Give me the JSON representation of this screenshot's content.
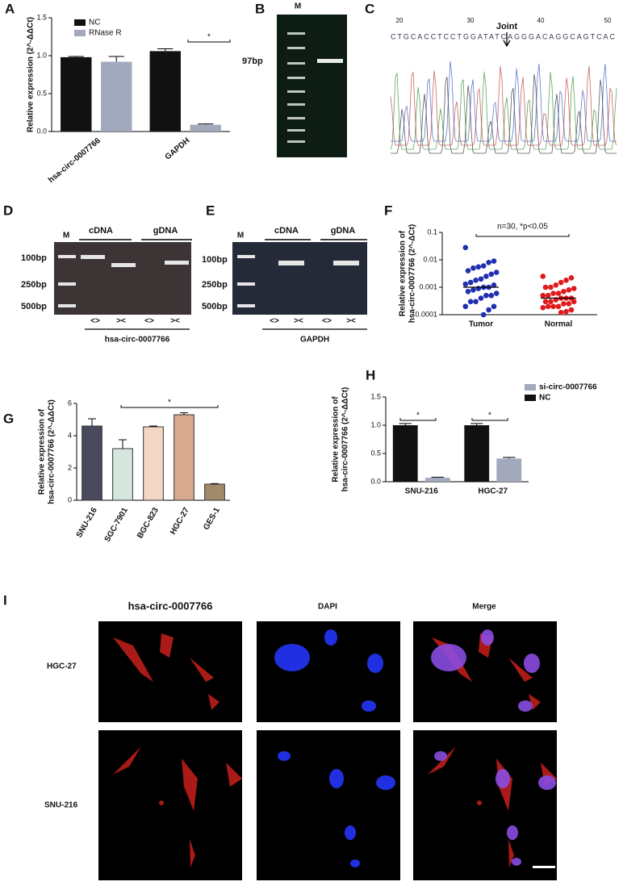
{
  "panel_letters": [
    "A",
    "B",
    "C",
    "D",
    "E",
    "F",
    "G",
    "H",
    "I"
  ],
  "chart_data": [
    {
      "type": "bar",
      "ylabel": "Relative expression (2^-ΔΔCt)",
      "categories": [
        "hsa-circ-0007766",
        "GAPDH"
      ],
      "series": [
        {
          "name": "NC",
          "color": "#111111",
          "values": [
            0.98,
            1.06
          ],
          "errors": [
            0.01,
            0.03
          ]
        },
        {
          "name": "RNase R",
          "color": "#a3a9bd",
          "values": [
            0.92,
            0.09
          ],
          "errors": [
            0.07,
            0.01
          ]
        }
      ],
      "ylim": [
        0,
        1.5
      ],
      "yticks": [
        {
          "value": 0,
          "label": "0.0"
        },
        {
          "value": 0.5,
          "label": "0.5"
        },
        {
          "value": 1,
          "label": "1.0"
        },
        {
          "value": 1.5,
          "label": "1.5"
        }
      ],
      "annotations": [
        "*"
      ]
    },
    {
      "type": "scatter",
      "ylabel": [
        "Relative expression of",
        "hsa-circ-0007766 (2^-ΔCt)"
      ],
      "categories": [
        "Tumor",
        "Normal"
      ],
      "series": [
        {
          "color": "#1f2fb0",
          "mean": 0.001,
          "values": [
            0.028,
            0.009,
            0.008,
            0.006,
            0.0055,
            0.005,
            0.004,
            0.0035,
            0.003,
            0.0025,
            0.002,
            0.0018,
            0.0015,
            0.0013,
            0.0012,
            0.001,
            0.001,
            0.0009,
            0.0008,
            0.0007,
            0.0006,
            0.0005,
            0.0005,
            0.0004,
            0.0003,
            0.0003,
            0.0002,
            0.0002,
            0.00015,
            0.0001
          ]
        },
        {
          "color": "#e0191d",
          "mean": 0.0004,
          "values": [
            0.0025,
            0.0022,
            0.0018,
            0.0015,
            0.0012,
            0.001,
            0.001,
            0.0009,
            0.0008,
            0.0007,
            0.0006,
            0.0006,
            0.0005,
            0.0005,
            0.0004,
            0.0004,
            0.0004,
            0.00035,
            0.0003,
            0.0003,
            0.0003,
            0.00025,
            0.00025,
            0.0002,
            0.0002,
            0.0002,
            0.00018,
            0.00015,
            0.00013,
            0.00012
          ]
        }
      ],
      "log_scale": true,
      "ylim": [
        0.0001,
        0.1
      ],
      "yticks": [
        0.0001,
        0.001,
        0.01,
        0.1
      ],
      "annotations": [
        "n=30, *p<0.05"
      ]
    },
    {
      "type": "bar",
      "ylabel": [
        "Relative expression of",
        "hsa-circ-0007766 (2^-ΔΔCt)"
      ],
      "categories": [
        "SNU-216",
        "SGC-7901",
        "BGC-823",
        "HGC-27",
        "GES-1"
      ],
      "values": [
        4.6,
        3.2,
        4.55,
        5.3,
        1.0
      ],
      "errors": [
        0.45,
        0.55,
        0.05,
        0.12,
        0.03
      ],
      "colors": [
        "#4a4a5e",
        "#d5e6de",
        "#f3d6c4",
        "#d7a98e",
        "#a08a6a"
      ],
      "ylim": [
        0,
        6
      ],
      "yticks": [
        0,
        2,
        4,
        6
      ],
      "annotations": [
        "*"
      ]
    },
    {
      "type": "bar",
      "ylabel": [
        "Relative expression of",
        "hsa-circ-0007766 (2^-ΔΔCt)"
      ],
      "categories": [
        "SNU-216",
        "HGC-27"
      ],
      "series": [
        {
          "name": "si-circ-0007766",
          "color": "#a3a9bd",
          "values": [
            0.07,
            0.41
          ],
          "errors": [
            0.01,
            0.02
          ]
        },
        {
          "name": "NC",
          "color": "#111111",
          "values": [
            1.0,
            1.0
          ],
          "errors": [
            0.03,
            0.03
          ]
        }
      ],
      "ylim": [
        0,
        1.5
      ],
      "yticks": [
        {
          "value": 0,
          "label": "0.0"
        },
        {
          "value": 0.5,
          "label": "0.5"
        },
        {
          "value": 1,
          "label": "1.0"
        },
        {
          "value": 1.5,
          "label": "1.5"
        }
      ],
      "annotations": [
        "*",
        "*"
      ]
    }
  ],
  "gel_b": {
    "marker": "M",
    "band_label": "97bp"
  },
  "chromatogram": {
    "positions": [
      20,
      30,
      40,
      50
    ],
    "arrow_label": "Joint",
    "sequence": "CTGCACCTCCTGGATATCAGGGACAGGCAGTCAC"
  },
  "gel_d": {
    "marker": "M",
    "groups": [
      "cDNA",
      "gDNA"
    ],
    "sizes": [
      "100bp",
      "250bp",
      "500bp"
    ],
    "primers": [
      "<>",
      "><",
      "<>",
      "><"
    ],
    "target": "hsa-circ-0007766"
  },
  "gel_e": {
    "marker": "M",
    "groups": [
      "cDNA",
      "gDNA"
    ],
    "sizes": [
      "100bp",
      "250bp",
      "500bp"
    ],
    "primers": [
      "<>",
      "><",
      "<>",
      "><"
    ],
    "target": "GAPDH"
  },
  "fluorescence": {
    "columns": [
      "hsa-circ-0007766",
      "DAPI",
      "Merge"
    ],
    "rows": [
      "HGC-27",
      "SNU-216"
    ]
  }
}
